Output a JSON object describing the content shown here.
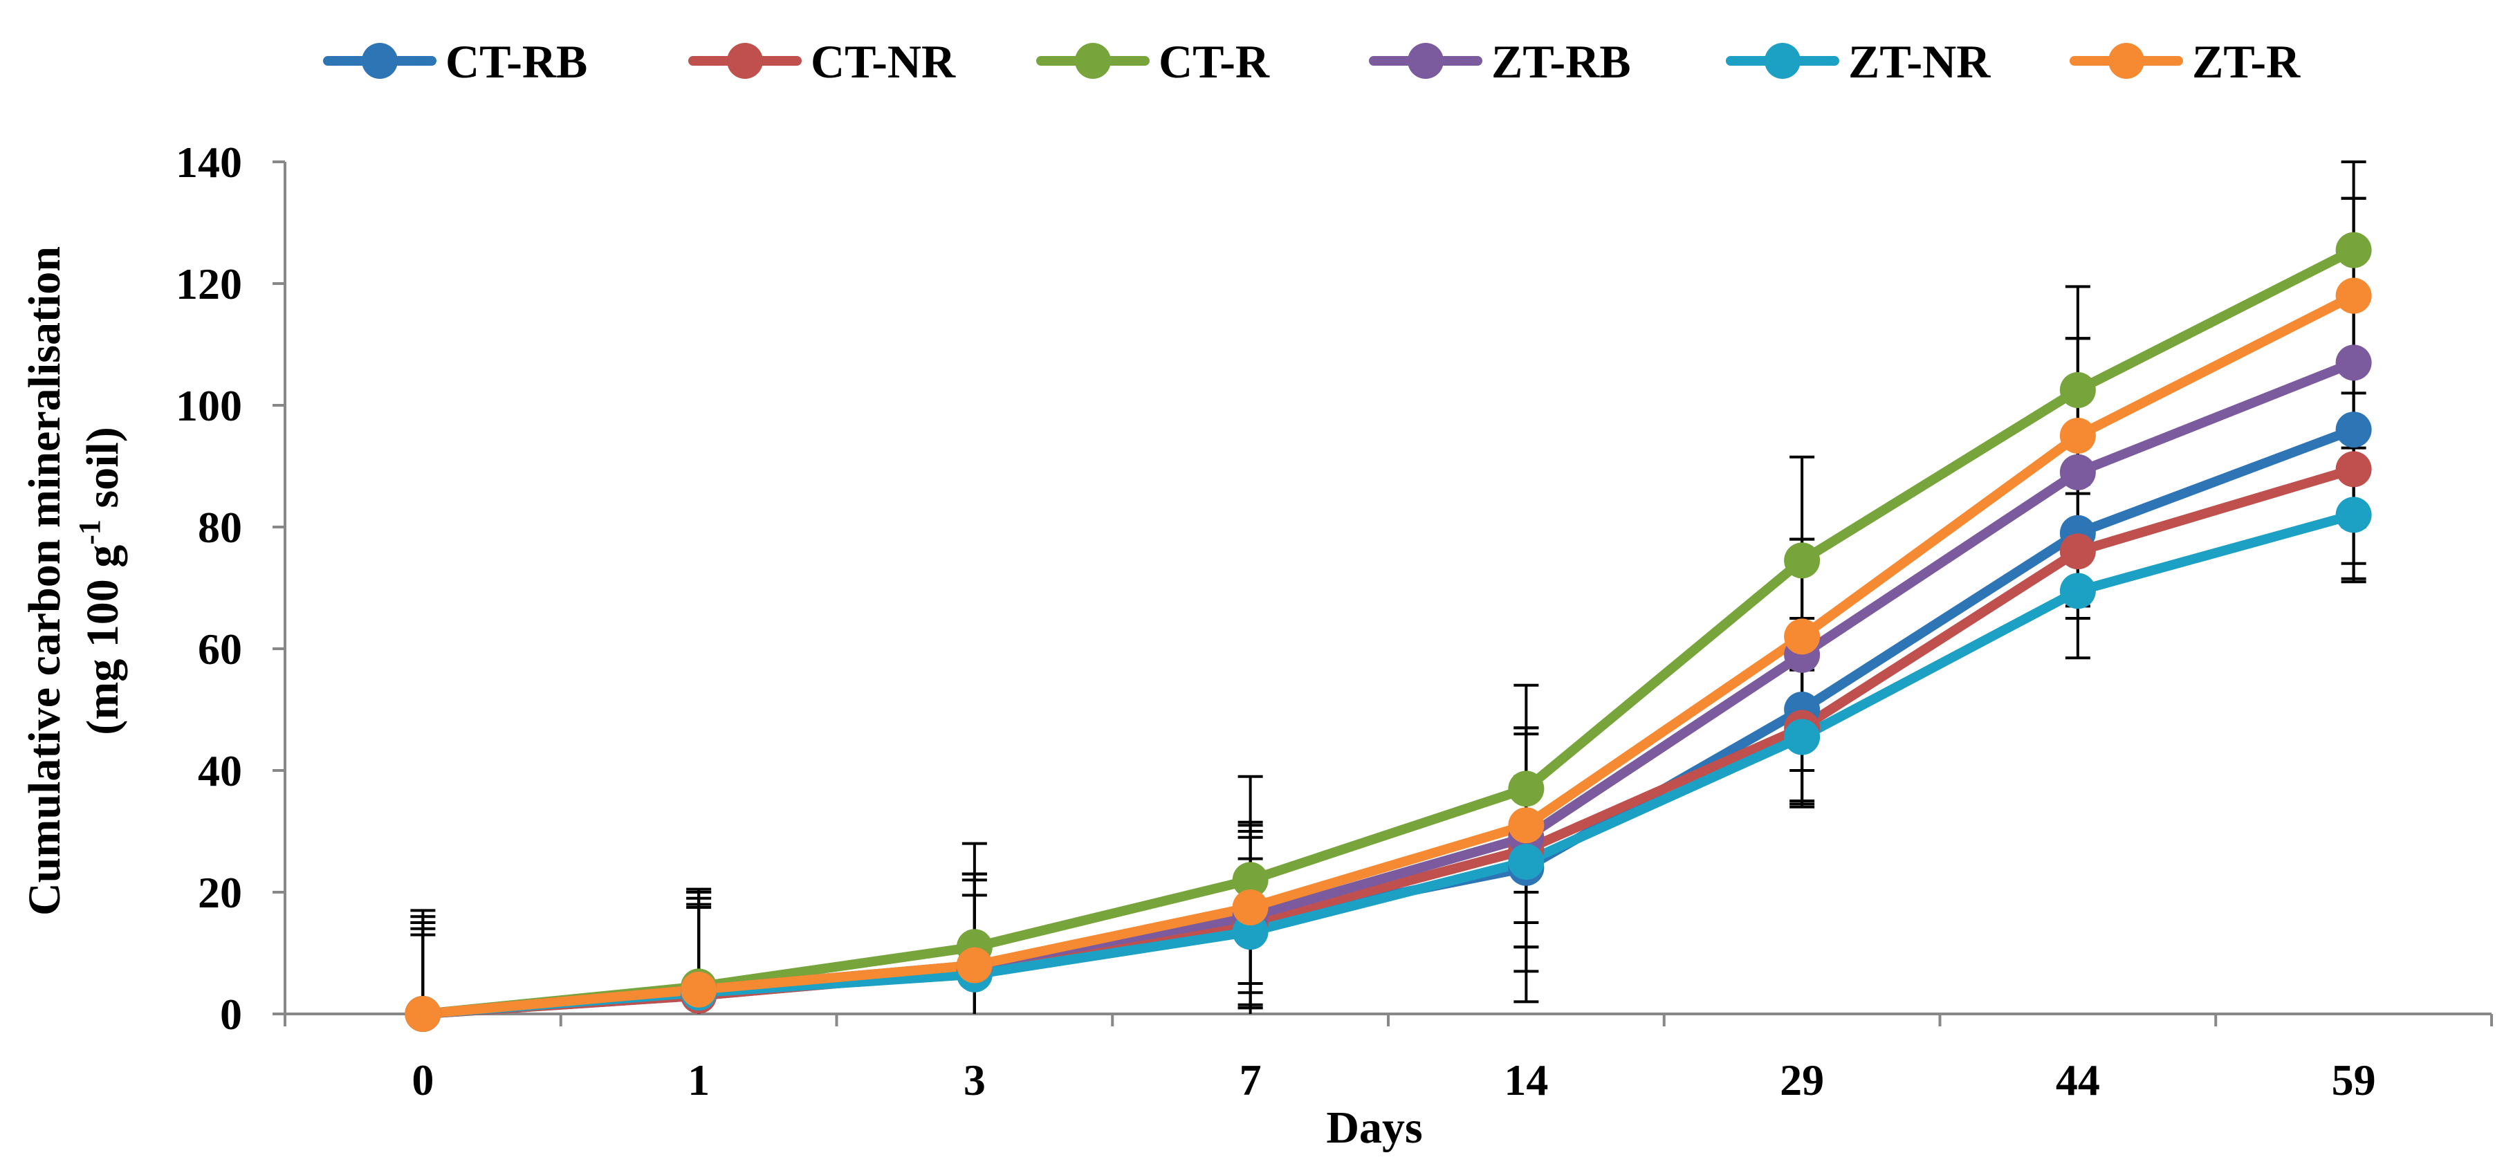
{
  "chart_data": {
    "type": "line",
    "title": "",
    "xlabel": "Days",
    "ylabel": "Cumulative carbon mineralisation",
    "ylabel_unit_prefix": "(mg 100 g",
    "ylabel_unit_sup": "-1",
    "ylabel_unit_suffix": " soil)",
    "categories": [
      "0",
      "1",
      "3",
      "7",
      "14",
      "29",
      "44",
      "59"
    ],
    "ylim": [
      0,
      140
    ],
    "yticks": [
      0,
      20,
      40,
      60,
      80,
      100,
      120,
      140
    ],
    "ytick_labels": [
      "0",
      "20",
      "40",
      "60",
      "80",
      "100",
      "120",
      "140"
    ],
    "grid": false,
    "legend_position": "top",
    "series": [
      {
        "name": "CT-RB",
        "color": "#2E75B6",
        "values": [
          0,
          3,
          7,
          15,
          24,
          50,
          79,
          96
        ],
        "errors": [
          16,
          16,
          15,
          15,
          22,
          15,
          11,
          22
        ]
      },
      {
        "name": "CT-NR",
        "color": "#C0504D",
        "values": [
          0,
          3,
          7,
          15,
          27,
          47,
          76,
          89.5
        ],
        "errors": [
          15,
          17,
          16,
          14,
          20,
          13,
          11,
          18
        ]
      },
      {
        "name": "CT-R",
        "color": "#77A53C",
        "values": [
          0,
          4.5,
          11,
          22,
          37,
          74.5,
          102.5,
          125.5
        ],
        "errors": [
          15,
          16,
          17,
          17,
          17,
          17,
          17,
          18
        ]
      },
      {
        "name": "ZT-RB",
        "color": "#7B5B9E",
        "values": [
          0,
          4,
          8,
          16,
          29,
          59,
          89,
          107
        ],
        "errors": [
          13,
          14,
          15,
          15,
          18,
          19,
          22,
          27
        ]
      },
      {
        "name": "ZT-NR",
        "color": "#1CA0C4",
        "values": [
          0,
          3.5,
          6.5,
          13.5,
          25,
          45.5,
          69.5,
          82
        ],
        "errors": [
          14,
          14,
          13,
          12,
          14,
          11,
          11,
          11
        ]
      },
      {
        "name": "ZT-R",
        "color": "#F58A32",
        "values": [
          0,
          4,
          8,
          17.5,
          31,
          62,
          95,
          118
        ],
        "errors": [
          17,
          16,
          15,
          14,
          16,
          16,
          16,
          16
        ]
      }
    ]
  }
}
